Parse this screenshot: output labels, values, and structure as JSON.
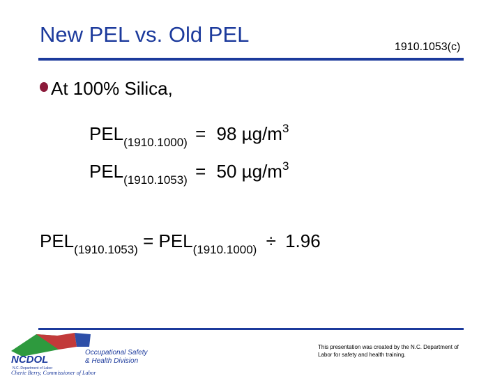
{
  "header": {
    "title": "New PEL vs. Old PEL",
    "reference": "1910.1053(c)"
  },
  "bullet": "At 100% Silica,",
  "equations": [
    {
      "term": "PEL",
      "subscript": "(1910.1000)",
      "equals": "=",
      "value": "98 µg/m",
      "superscript": "3"
    },
    {
      "term": "PEL",
      "subscript": "(1910.1053)",
      "equals": "=",
      "value": "50 µg/m",
      "superscript": "3"
    }
  ],
  "formula": {
    "lhs": "PEL",
    "lhs_subscript": "(1910.1053)",
    "equals": "=",
    "rhs": "PEL",
    "rhs_subscript": "(1910.1000)",
    "operator": "÷",
    "divisor": "1.96"
  },
  "footer": {
    "logo": "NCDOL",
    "logo_caption": "N.C. Department of Labor",
    "division_line1": "Occupational Safety",
    "division_line2": "& Health Division",
    "commissioner": "Cherie Berry, Commissioner of Labor",
    "disclaimer": "This presentation was created by the N.C. Department of Labor for safety and health training."
  }
}
